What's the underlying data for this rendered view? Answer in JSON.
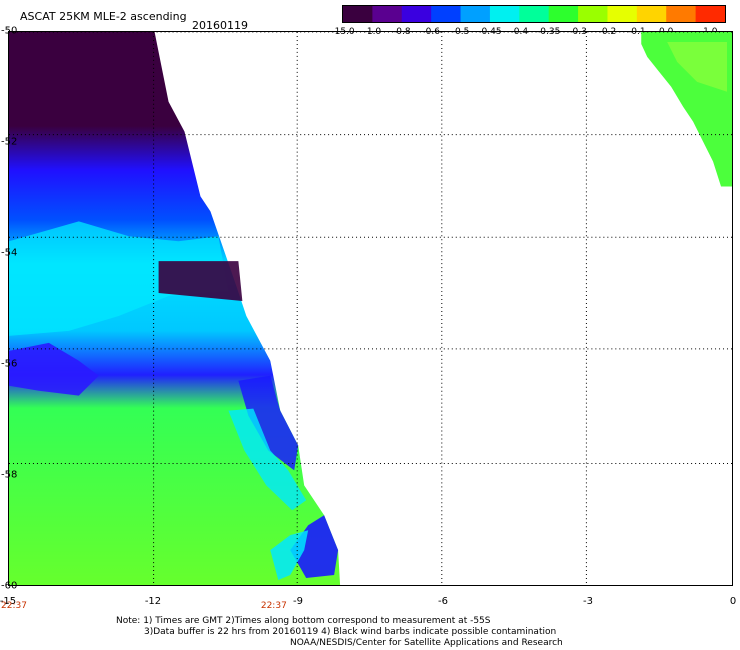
{
  "header": {
    "title": "ASCAT 25KM MLE-2 ascending",
    "date": "20160119"
  },
  "colorbar": {
    "labels": [
      "-15.0",
      "-1.0",
      "-0.8",
      "-0.6",
      "-0.5",
      "-0.45",
      "-0.4",
      "-0.35",
      "-0.3",
      "-0.2",
      "-0.1",
      "0.0",
      "1.0"
    ],
    "colors": [
      "#3a003f",
      "#5a0090",
      "#3a00e0",
      "#0040ff",
      "#00a0ff",
      "#00f0f0",
      "#00ff9a",
      "#2dff2d",
      "#9aff00",
      "#e6ff00",
      "#ffd400",
      "#ff7a00",
      "#ff2a00"
    ]
  },
  "axes": {
    "x_ticks": [
      "-15",
      "-12",
      "-9",
      "-6",
      "-3",
      "0"
    ],
    "y_ticks": [
      "-50",
      "-52",
      "-54",
      "-56",
      "-58",
      "-60"
    ],
    "time_labels": [
      {
        "text": "22:37",
        "lon": -15
      },
      {
        "text": "22:37",
        "lon": -9.5
      }
    ]
  },
  "map": {
    "lon_range": [
      -15,
      0
    ],
    "lat_range": [
      -60,
      -50
    ],
    "swath_regions": [
      {
        "name": "west-swath-dark",
        "color": "#3a003f"
      },
      {
        "name": "west-swath-blue",
        "color": "#2a1aff"
      },
      {
        "name": "west-swath-cyan",
        "color": "#00e8ff"
      },
      {
        "name": "west-swath-green",
        "color": "#62ff2d"
      },
      {
        "name": "east-swath-green",
        "color": "#4cff3c"
      }
    ]
  },
  "footer": {
    "line1": "Note: 1) Times are GMT 2)Times along bottom correspond to measurement at -55S",
    "line2": "3)Data buffer is 22 hrs from 20160119 4) Black wind barbs indicate possible contamination",
    "line3": "NOAA/NESDIS/Center for Satellite Applications and Research"
  }
}
